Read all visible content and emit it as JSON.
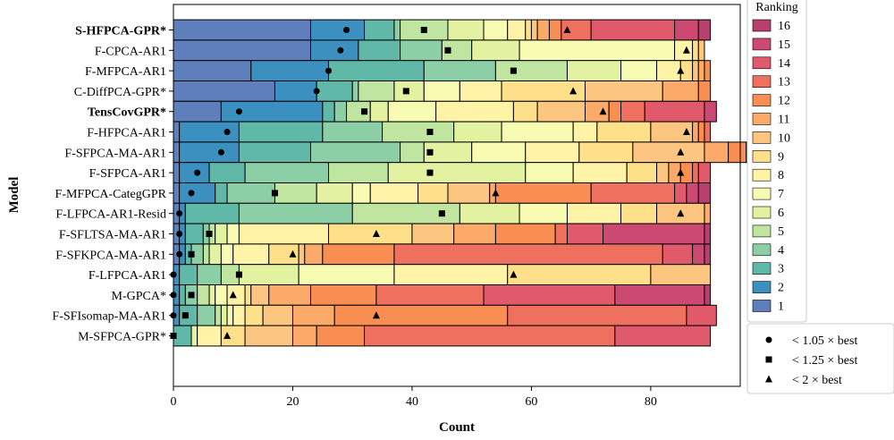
{
  "chart_data": {
    "type": "bar",
    "orientation": "horizontal-stacked",
    "xlabel": "Count",
    "ylabel": "Model",
    "xlim": [
      0,
      95
    ],
    "xticks": [
      0,
      20,
      40,
      60,
      80
    ],
    "legend": {
      "title": "Ranking",
      "placement": "right",
      "ranks": [
        "16",
        "15",
        "14",
        "13",
        "12",
        "11",
        "10",
        "9",
        "8",
        "7",
        "6",
        "5",
        "4",
        "3",
        "2",
        "1"
      ],
      "markers": [
        {
          "marker": "circle",
          "label": "< 1.05 × best"
        },
        {
          "marker": "square",
          "label": "< 1.25 × best"
        },
        {
          "marker": "triangle",
          "label": "< 2 × best"
        }
      ]
    },
    "rank_colors": [
      "#5e7ebc",
      "#3c90c0",
      "#5fb8a8",
      "#8ccfa7",
      "#bfe5a0",
      "#e3f2a0",
      "#f7fcb2",
      "#fff3a8",
      "#fee08b",
      "#fdc680",
      "#fcaa6a",
      "#f98e52",
      "#f07060",
      "#e05a6c",
      "#cc4a72",
      "#b8406e"
    ],
    "series": [
      {
        "name": "S-HFPCA-GPR*",
        "bold": true,
        "counts": [
          23,
          9,
          5,
          1,
          8,
          6,
          4,
          3,
          1,
          1,
          2,
          2,
          5,
          14,
          4,
          2
        ],
        "circle": 29,
        "square": 42,
        "triangle": 66
      },
      {
        "name": "F-CPCA-AR1",
        "bold": false,
        "counts": [
          23,
          8,
          7,
          7,
          5,
          8,
          26,
          3,
          1,
          1,
          0,
          0,
          0,
          0,
          0,
          0
        ],
        "circle": 28,
        "square": 46,
        "triangle": 86
      },
      {
        "name": "F-MFPCA-AR1",
        "bold": false,
        "counts": [
          13,
          13,
          16,
          12,
          12,
          9,
          6,
          4,
          2,
          1,
          1,
          1,
          0,
          0,
          0,
          0
        ],
        "circle": 26,
        "square": 57,
        "triangle": 85
      },
      {
        "name": "C-DiffPCA-GPR*",
        "bold": false,
        "counts": [
          17,
          7,
          6,
          1,
          6,
          5,
          6,
          7,
          14,
          13,
          6,
          2,
          0,
          0,
          0,
          0
        ],
        "circle": 24,
        "square": 39,
        "triangle": 67
      },
      {
        "name": "TensCovGPR*",
        "bold": true,
        "counts": [
          8,
          17,
          2,
          2,
          4,
          3,
          8,
          13,
          4,
          8,
          4,
          2,
          4,
          10,
          2,
          0
        ],
        "circle": 11,
        "square": 32,
        "triangle": 72
      },
      {
        "name": "F-HFPCA-AR1",
        "bold": false,
        "counts": [
          1,
          10,
          14,
          10,
          12,
          8,
          12,
          4,
          9,
          7,
          1,
          1,
          1,
          0,
          0,
          0
        ],
        "circle": 9,
        "square": 43,
        "triangle": 86
      },
      {
        "name": "F-SFPCA-MA-AR1",
        "bold": false,
        "counts": [
          1,
          10,
          12,
          15,
          4,
          8,
          9,
          9,
          9,
          12,
          4,
          3,
          2,
          0,
          0,
          0
        ],
        "circle": 8,
        "square": 43,
        "triangle": 85
      },
      {
        "name": "F-SFPCA-AR1",
        "bold": false,
        "counts": [
          1,
          5,
          6,
          14,
          10,
          23,
          8,
          9,
          5,
          2,
          2,
          2,
          1,
          2,
          0,
          0
        ],
        "circle": 4,
        "square": 43,
        "triangle": 85
      },
      {
        "name": "F-MFPCA-CategGPR",
        "bold": false,
        "counts": [
          1,
          6,
          2,
          8,
          7,
          6,
          3,
          8,
          5,
          7,
          1,
          16,
          14,
          2,
          2,
          2
        ],
        "circle": 3,
        "square": 17,
        "triangle": 54
      },
      {
        "name": "F-LFPCA-AR1-Resid",
        "bold": false,
        "counts": [
          1,
          1,
          9,
          19,
          18,
          10,
          8,
          9,
          6,
          8,
          1,
          0,
          0,
          0,
          0,
          0
        ],
        "circle": 1,
        "square": 45,
        "triangle": 85
      },
      {
        "name": "F-SFLTSA-MA-AR1",
        "bold": false,
        "counts": [
          1,
          1,
          3,
          1,
          1,
          2,
          2,
          15,
          14,
          7,
          7,
          10,
          2,
          6,
          17,
          1
        ],
        "circle": 1,
        "square": 6,
        "triangle": 34
      },
      {
        "name": "F-SFKPCA-MA-AR1",
        "bold": false,
        "counts": [
          1,
          1,
          1,
          2,
          1,
          2,
          2,
          6,
          5,
          1,
          3,
          12,
          45,
          5,
          2,
          1
        ],
        "circle": 1,
        "square": 3,
        "triangle": 20
      },
      {
        "name": "F-LFPCA-AR1",
        "bold": false,
        "counts": [
          0,
          1,
          3,
          4,
          3,
          10,
          16,
          19,
          24,
          10,
          0,
          0,
          0,
          0,
          0,
          0
        ],
        "circle": 0,
        "square": 11,
        "triangle": 57
      },
      {
        "name": "M-GPCA*",
        "bold": false,
        "counts": [
          0,
          1,
          1,
          2,
          2,
          1,
          2,
          3,
          1,
          3,
          7,
          11,
          18,
          22,
          15,
          1
        ],
        "circle": 0,
        "square": 3,
        "triangle": 10
      },
      {
        "name": "F-SFIsomap-MA-AR1",
        "bold": false,
        "counts": [
          0,
          1,
          3,
          3,
          1,
          1,
          1,
          2,
          3,
          5,
          7,
          29,
          30,
          5,
          0,
          0
        ],
        "circle": 0,
        "square": 2,
        "triangle": 34
      },
      {
        "name": "M-SFPCA-GPR*",
        "bold": false,
        "counts": [
          0,
          0,
          3,
          0,
          0,
          1,
          0,
          4,
          4,
          8,
          4,
          8,
          42,
          16,
          0,
          0
        ],
        "circle": 0,
        "square": 0,
        "triangle": 9
      }
    ]
  }
}
